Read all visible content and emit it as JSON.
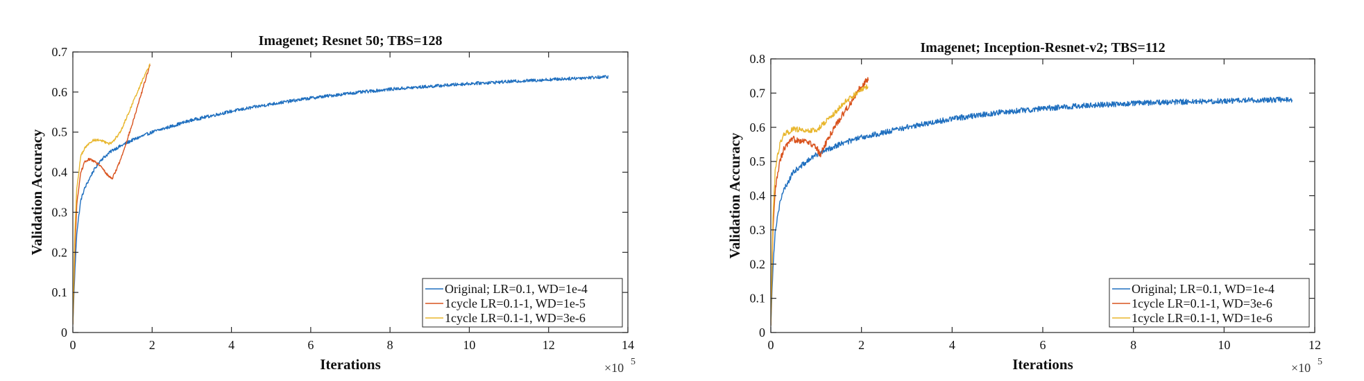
{
  "chart_data": [
    {
      "type": "line",
      "title": "Imagenet; Resnet 50; TBS=128",
      "xlabel": "Iterations",
      "ylabel": "Validation Accuracy",
      "x_multiplier": "×10",
      "x_exponent": "5",
      "xlim": [
        0,
        14
      ],
      "ylim": [
        0,
        0.7
      ],
      "xticks": [
        0,
        2,
        4,
        6,
        8,
        10,
        12,
        14
      ],
      "yticks": [
        0,
        0.1,
        0.2,
        0.3,
        0.4,
        0.5,
        0.6,
        0.7
      ],
      "legend_position": "bottom-right",
      "grid": false,
      "series": [
        {
          "name": "Original; LR=0.1, WD=1e-4",
          "color": "#1f6fbf",
          "noise": 0.004,
          "x": [
            0,
            0.05,
            0.1,
            0.2,
            0.3,
            0.5,
            0.7,
            1,
            1.5,
            2,
            3,
            4,
            5,
            6,
            7,
            8,
            9,
            10,
            11,
            12,
            13,
            13.5
          ],
          "y": [
            0.02,
            0.15,
            0.25,
            0.33,
            0.36,
            0.4,
            0.43,
            0.455,
            0.48,
            0.5,
            0.53,
            0.552,
            0.57,
            0.585,
            0.597,
            0.607,
            0.614,
            0.621,
            0.626,
            0.631,
            0.636,
            0.638
          ]
        },
        {
          "name": "1cycle LR=0.1-1, WD=1e-5",
          "color": "#d9531e",
          "noise": 0.003,
          "x": [
            0,
            0.05,
            0.1,
            0.2,
            0.3,
            0.4,
            0.5,
            0.7,
            0.9,
            1.0,
            1.2,
            1.5,
            1.8,
            1.95
          ],
          "y": [
            0.02,
            0.2,
            0.32,
            0.4,
            0.425,
            0.432,
            0.43,
            0.415,
            0.39,
            0.385,
            0.43,
            0.52,
            0.62,
            0.67
          ]
        },
        {
          "name": "1cycle LR=0.1-1, WD=3e-6",
          "color": "#e8b62c",
          "noise": 0.003,
          "x": [
            0,
            0.05,
            0.1,
            0.2,
            0.3,
            0.5,
            0.7,
            0.9,
            1.0,
            1.2,
            1.5,
            1.8,
            1.95
          ],
          "y": [
            0.02,
            0.25,
            0.36,
            0.44,
            0.46,
            0.48,
            0.48,
            0.47,
            0.475,
            0.5,
            0.57,
            0.64,
            0.67
          ]
        }
      ]
    },
    {
      "type": "line",
      "title": "Imagenet; Inception-Resnet-v2; TBS=112",
      "xlabel": "Iterations",
      "ylabel": "Validation Accuracy",
      "x_multiplier": "×10",
      "x_exponent": "5",
      "xlim": [
        0,
        12
      ],
      "ylim": [
        0,
        0.8
      ],
      "xticks": [
        0,
        2,
        4,
        6,
        8,
        10,
        12
      ],
      "yticks": [
        0,
        0.1,
        0.2,
        0.3,
        0.4,
        0.5,
        0.6,
        0.7,
        0.8
      ],
      "legend_position": "bottom-right",
      "grid": false,
      "series": [
        {
          "name": "Original; LR=0.1, WD=1e-4",
          "color": "#1f6fbf",
          "noise": 0.008,
          "x": [
            0,
            0.05,
            0.1,
            0.2,
            0.3,
            0.5,
            0.8,
            1,
            1.5,
            2,
            3,
            4,
            5,
            6,
            7,
            8,
            9,
            10,
            11,
            11.5
          ],
          "y": [
            0.02,
            0.2,
            0.3,
            0.38,
            0.42,
            0.47,
            0.5,
            0.52,
            0.55,
            0.57,
            0.6,
            0.625,
            0.643,
            0.655,
            0.664,
            0.67,
            0.674,
            0.677,
            0.68,
            0.681
          ]
        },
        {
          "name": "1cycle LR=0.1-1, WD=3e-6",
          "color": "#d9531e",
          "noise": 0.01,
          "x": [
            0,
            0.05,
            0.1,
            0.2,
            0.3,
            0.5,
            0.8,
            1.0,
            1.1,
            1.2,
            1.4,
            1.6,
            1.8,
            2.0,
            2.15
          ],
          "y": [
            0.02,
            0.3,
            0.42,
            0.5,
            0.54,
            0.565,
            0.56,
            0.54,
            0.52,
            0.55,
            0.6,
            0.64,
            0.68,
            0.72,
            0.74
          ]
        },
        {
          "name": "1cycle LR=0.1-1, WD=1e-6",
          "color": "#e8b62c",
          "noise": 0.008,
          "x": [
            0,
            0.05,
            0.1,
            0.2,
            0.3,
            0.5,
            0.8,
            1.0,
            1.2,
            1.4,
            1.6,
            1.8,
            2.0,
            2.15
          ],
          "y": [
            0.02,
            0.35,
            0.48,
            0.55,
            0.58,
            0.595,
            0.59,
            0.59,
            0.615,
            0.64,
            0.67,
            0.69,
            0.71,
            0.72
          ]
        }
      ]
    }
  ]
}
